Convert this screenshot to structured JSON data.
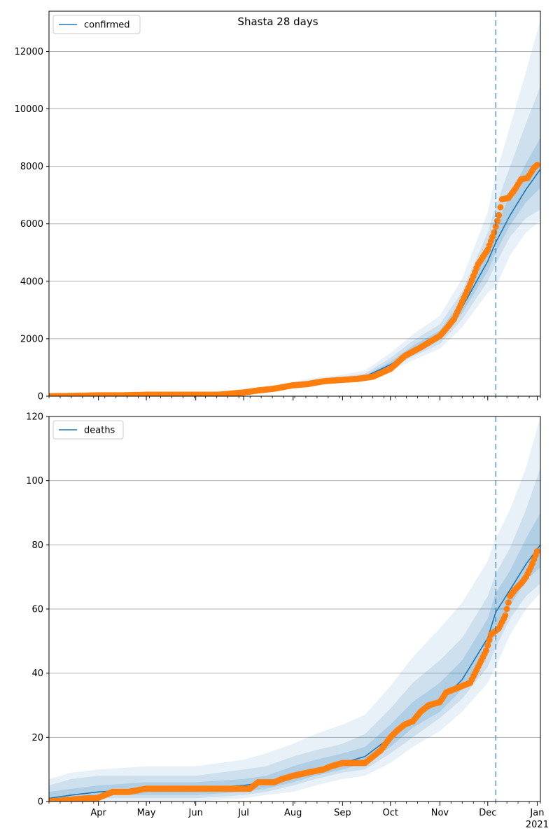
{
  "figure": {
    "title": "Shasta 28 days",
    "colors": {
      "model": "#1f77b4",
      "observed": "#ff7f0e",
      "band": "#1f77b4",
      "cutoff": "#1f77b4",
      "grid": "#b0b0b0"
    }
  },
  "chart_data": [
    {
      "type": "line",
      "legend": "confirmed",
      "legend_loc": "upper-left",
      "x_type": "date",
      "xlim": [
        "2020-03-01",
        "2021-01-03"
      ],
      "ylim": [
        0,
        13400
      ],
      "yticks": [
        0,
        2000,
        4000,
        6000,
        8000,
        10000,
        12000
      ],
      "grid": "y",
      "forecast_start": "2020-12-06",
      "model": {
        "x": [
          "2020-03-01",
          "2020-04-01",
          "2020-05-01",
          "2020-06-01",
          "2020-06-15",
          "2020-07-01",
          "2020-07-15",
          "2020-08-01",
          "2020-08-15",
          "2020-09-01",
          "2020-09-15",
          "2020-10-01",
          "2020-10-15",
          "2020-11-01",
          "2020-11-15",
          "2020-12-01",
          "2020-12-06",
          "2020-12-15",
          "2020-12-25",
          "2021-01-03"
        ],
        "y": [
          0,
          5,
          20,
          30,
          45,
          120,
          250,
          400,
          520,
          600,
          680,
          1100,
          1600,
          2100,
          3100,
          4700,
          5350,
          6300,
          7200,
          7900
        ]
      },
      "bands": [
        {
          "name": "95%",
          "lower": [
            0,
            0,
            5,
            15,
            25,
            90,
            200,
            340,
            450,
            520,
            590,
            880,
            1250,
            1650,
            2400,
            3600,
            3800,
            4900,
            5700,
            6100
          ],
          "upper": [
            20,
            30,
            50,
            70,
            90,
            170,
            330,
            500,
            640,
            750,
            900,
            1500,
            2150,
            2800,
            4100,
            6400,
            7700,
            9400,
            11300,
            13100
          ]
        },
        {
          "name": "80%",
          "lower": [
            0,
            1,
            10,
            20,
            33,
            100,
            220,
            365,
            480,
            550,
            625,
            970,
            1380,
            1820,
            2680,
            4000,
            4600,
            5550,
            6200,
            6500
          ],
          "upper": [
            12,
            18,
            35,
            50,
            65,
            150,
            300,
            460,
            590,
            680,
            790,
            1330,
            1930,
            2500,
            3650,
            5700,
            6600,
            8000,
            9500,
            10800
          ]
        },
        {
          "name": "50%",
          "lower": [
            0,
            3,
            15,
            24,
            38,
            110,
            235,
            385,
            500,
            575,
            655,
            1040,
            1490,
            1960,
            2900,
            4350,
            5000,
            5950,
            6750,
            7250
          ],
          "upper": [
            6,
            10,
            27,
            38,
            55,
            132,
            270,
            425,
            550,
            630,
            720,
            1200,
            1760,
            2290,
            3350,
            5150,
            5900,
            7000,
            8100,
            9000
          ]
        }
      ],
      "observed": {
        "x": [
          "2020-03-01",
          "2020-03-15",
          "2020-04-01",
          "2020-04-15",
          "2020-05-01",
          "2020-05-15",
          "2020-06-01",
          "2020-06-15",
          "2020-07-01",
          "2020-07-10",
          "2020-07-20",
          "2020-08-01",
          "2020-08-10",
          "2020-08-20",
          "2020-09-01",
          "2020-09-10",
          "2020-09-20",
          "2020-10-01",
          "2020-10-10",
          "2020-10-20",
          "2020-11-01",
          "2020-11-05",
          "2020-11-10",
          "2020-11-15",
          "2020-11-20",
          "2020-11-25",
          "2020-12-01",
          "2020-12-05",
          "2020-12-08",
          "2020-12-10",
          "2020-12-14",
          "2020-12-18",
          "2020-12-22",
          "2020-12-26",
          "2020-12-30",
          "2021-01-01"
        ],
        "y": [
          0,
          10,
          30,
          30,
          50,
          50,
          50,
          50,
          130,
          200,
          260,
          380,
          420,
          520,
          570,
          600,
          680,
          950,
          1400,
          1700,
          2100,
          2350,
          2700,
          3300,
          3900,
          4600,
          5100,
          5700,
          6300,
          6850,
          6900,
          7200,
          7550,
          7600,
          7950,
          8050
        ]
      }
    },
    {
      "type": "line",
      "legend": "deaths",
      "legend_loc": "upper-left",
      "x_type": "date",
      "xlim": [
        "2020-03-01",
        "2021-01-03"
      ],
      "ylim": [
        0,
        120
      ],
      "yticks": [
        0,
        20,
        40,
        60,
        80,
        100,
        120
      ],
      "xticks": [
        "Apr",
        "May",
        "Jun",
        "Jul",
        "Aug",
        "Sep",
        "Oct",
        "Nov",
        "Dec",
        "Jan"
      ],
      "xtick_year": "2021",
      "grid": "y",
      "forecast_start": "2020-12-06",
      "model": {
        "x": [
          "2020-03-01",
          "2020-03-15",
          "2020-04-01",
          "2020-05-01",
          "2020-06-01",
          "2020-07-01",
          "2020-07-15",
          "2020-08-01",
          "2020-08-15",
          "2020-09-01",
          "2020-09-15",
          "2020-10-01",
          "2020-10-15",
          "2020-11-01",
          "2020-11-15",
          "2020-12-01",
          "2020-12-06",
          "2020-12-15",
          "2020-12-25",
          "2021-01-03"
        ],
        "y": [
          1,
          2,
          3,
          4,
          4,
          5,
          6,
          8,
          10,
          12,
          14,
          20,
          26,
          31,
          38,
          51,
          59,
          66,
          74,
          80
        ]
      },
      "bands": [
        {
          "name": "95%",
          "lower": [
            0,
            0,
            0,
            0,
            0,
            1,
            2,
            3,
            5,
            7,
            8,
            12,
            17,
            22,
            28,
            37,
            42,
            52,
            60,
            65
          ],
          "upper": [
            7,
            9,
            10,
            11,
            11,
            13,
            15,
            18,
            21,
            24,
            27,
            36,
            45,
            54,
            62,
            75,
            82,
            91,
            104,
            120
          ]
        },
        {
          "name": "80%",
          "lower": [
            0,
            0,
            1,
            1,
            1,
            2,
            3,
            5,
            7,
            9,
            10,
            15,
            20,
            26,
            32,
            42,
            48,
            57,
            64,
            68
          ],
          "upper": [
            5,
            7,
            8,
            8,
            8,
            10,
            11,
            14,
            16,
            18,
            21,
            29,
            37,
            44,
            51,
            64,
            71,
            79,
            91,
            104
          ]
        },
        {
          "name": "50%",
          "lower": [
            0,
            1,
            2,
            2,
            2,
            3,
            4,
            6,
            8,
            10,
            12,
            17,
            23,
            28,
            35,
            46,
            53,
            61,
            69,
            73
          ],
          "upper": [
            3,
            4,
            5,
            6,
            6,
            7,
            8,
            11,
            13,
            15,
            17,
            24,
            31,
            37,
            44,
            57,
            65,
            72,
            82,
            90
          ]
        }
      ],
      "observed": {
        "x": [
          "2020-03-01",
          "2020-03-25",
          "2020-03-31",
          "2020-04-05",
          "2020-04-10",
          "2020-04-20",
          "2020-05-01",
          "2020-05-15",
          "2020-06-01",
          "2020-06-15",
          "2020-07-01",
          "2020-07-05",
          "2020-07-10",
          "2020-07-20",
          "2020-07-25",
          "2020-08-01",
          "2020-08-10",
          "2020-08-20",
          "2020-08-25",
          "2020-09-01",
          "2020-09-10",
          "2020-09-15",
          "2020-09-20",
          "2020-09-25",
          "2020-10-01",
          "2020-10-05",
          "2020-10-10",
          "2020-10-15",
          "2020-10-20",
          "2020-10-25",
          "2020-11-01",
          "2020-11-05",
          "2020-11-10",
          "2020-11-15",
          "2020-11-20",
          "2020-11-25",
          "2020-11-30",
          "2020-12-03",
          "2020-12-08",
          "2020-12-12",
          "2020-12-15",
          "2020-12-18",
          "2020-12-22",
          "2020-12-25",
          "2020-12-28",
          "2021-01-01"
        ],
        "y": [
          0,
          1,
          1,
          2,
          3,
          3,
          4,
          4,
          4,
          4,
          4,
          4,
          6,
          6,
          7,
          8,
          9,
          10,
          11,
          12,
          12,
          12,
          14,
          16,
          20,
          22,
          24,
          25,
          28,
          30,
          31,
          34,
          35,
          36,
          37,
          42,
          47,
          52,
          54,
          58,
          64,
          66,
          68,
          70,
          73,
          78
        ]
      }
    }
  ]
}
